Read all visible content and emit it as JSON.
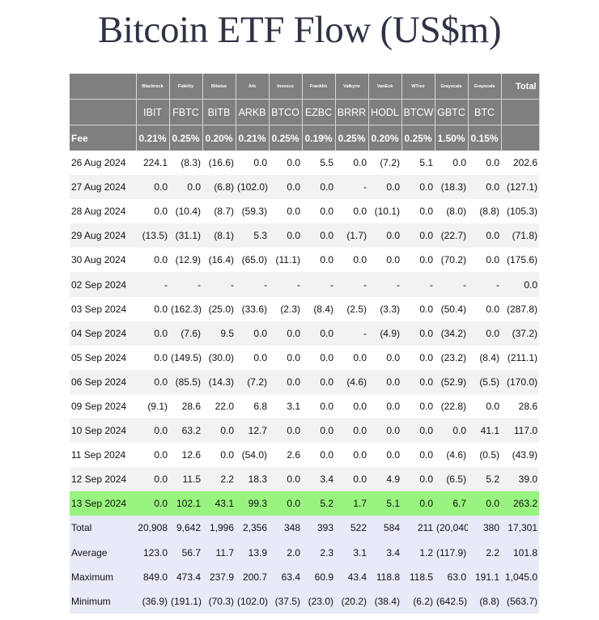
{
  "title": "Bitcoin ETF Flow (US$m)",
  "table": {
    "issuers": [
      "Blackrock",
      "Fidelity",
      "Bitwise",
      "Ark",
      "Invesco",
      "Franklin",
      "Valkyrie",
      "VanEck",
      "WTree",
      "Grayscale",
      "Grayscale"
    ],
    "total_label": "Total",
    "tickers": [
      "IBIT",
      "FBTC",
      "BITB",
      "ARKB",
      "BTCO",
      "EZBC",
      "BRRR",
      "HODL",
      "BTCW",
      "GBTC",
      "BTC"
    ],
    "fee_label": "Fee",
    "fees": [
      "0.21%",
      "0.25%",
      "0.20%",
      "0.21%",
      "0.25%",
      "0.19%",
      "0.25%",
      "0.20%",
      "0.25%",
      "1.50%",
      "0.15%"
    ],
    "rows": [
      {
        "date": "26 Aug 2024",
        "cells": [
          "224.1",
          "(8.3)",
          "(16.6)",
          "0.0",
          "0.0",
          "5.5",
          "0.0",
          "(7.2)",
          "5.1",
          "0.0",
          "0.0",
          "202.6"
        ]
      },
      {
        "date": "27 Aug 2024",
        "cells": [
          "0.0",
          "0.0",
          "(6.8)",
          "(102.0)",
          "0.0",
          "0.0",
          "-",
          "0.0",
          "0.0",
          "(18.3)",
          "0.0",
          "(127.1)"
        ]
      },
      {
        "date": "28 Aug 2024",
        "cells": [
          "0.0",
          "(10.4)",
          "(8.7)",
          "(59.3)",
          "0.0",
          "0.0",
          "0.0",
          "(10.1)",
          "0.0",
          "(8.0)",
          "(8.8)",
          "(105.3)"
        ]
      },
      {
        "date": "29 Aug 2024",
        "cells": [
          "(13.5)",
          "(31.1)",
          "(8.1)",
          "5.3",
          "0.0",
          "0.0",
          "(1.7)",
          "0.0",
          "0.0",
          "(22.7)",
          "0.0",
          "(71.8)"
        ]
      },
      {
        "date": "30 Aug 2024",
        "cells": [
          "0.0",
          "(12.9)",
          "(16.4)",
          "(65.0)",
          "(11.1)",
          "0.0",
          "0.0",
          "0.0",
          "0.0",
          "(70.2)",
          "0.0",
          "(175.6)"
        ]
      },
      {
        "date": "02 Sep 2024",
        "cells": [
          "-",
          "-",
          "-",
          "-",
          "-",
          "-",
          "-",
          "-",
          "-",
          "-",
          "-",
          "0.0"
        ]
      },
      {
        "date": "03 Sep 2024",
        "cells": [
          "0.0",
          "(162.3)",
          "(25.0)",
          "(33.6)",
          "(2.3)",
          "(8.4)",
          "(2.5)",
          "(3.3)",
          "0.0",
          "(50.4)",
          "0.0",
          "(287.8)"
        ]
      },
      {
        "date": "04 Sep 2024",
        "cells": [
          "0.0",
          "(7.6)",
          "9.5",
          "0.0",
          "0.0",
          "0.0",
          "-",
          "(4.9)",
          "0.0",
          "(34.2)",
          "0.0",
          "(37.2)"
        ]
      },
      {
        "date": "05 Sep 2024",
        "cells": [
          "0.0",
          "(149.5)",
          "(30.0)",
          "0.0",
          "0.0",
          "0.0",
          "0.0",
          "0.0",
          "0.0",
          "(23.2)",
          "(8.4)",
          "(211.1)"
        ]
      },
      {
        "date": "06 Sep 2024",
        "cells": [
          "0.0",
          "(85.5)",
          "(14.3)",
          "(7.2)",
          "0.0",
          "0.0",
          "(4.6)",
          "0.0",
          "0.0",
          "(52.9)",
          "(5.5)",
          "(170.0)"
        ]
      },
      {
        "date": "09 Sep 2024",
        "cells": [
          "(9.1)",
          "28.6",
          "22.0",
          "6.8",
          "3.1",
          "0.0",
          "0.0",
          "0.0",
          "0.0",
          "(22.8)",
          "0.0",
          "28.6"
        ]
      },
      {
        "date": "10 Sep 2024",
        "cells": [
          "0.0",
          "63.2",
          "0.0",
          "12.7",
          "0.0",
          "0.0",
          "0.0",
          "0.0",
          "0.0",
          "0.0",
          "41.1",
          "117.0"
        ]
      },
      {
        "date": "11 Sep 2024",
        "cells": [
          "0.0",
          "12.6",
          "0.0",
          "(54.0)",
          "2.6",
          "0.0",
          "0.0",
          "0.0",
          "0.0",
          "(4.6)",
          "(0.5)",
          "(43.9)"
        ]
      },
      {
        "date": "12 Sep 2024",
        "cells": [
          "0.0",
          "11.5",
          "2.2",
          "18.3",
          "0.0",
          "3.4",
          "0.0",
          "4.9",
          "0.0",
          "(6.5)",
          "5.2",
          "39.0"
        ]
      },
      {
        "date": "13 Sep 2024",
        "cells": [
          "0.0",
          "102.1",
          "43.1",
          "99.3",
          "0.0",
          "5.2",
          "1.7",
          "5.1",
          "0.0",
          "6.7",
          "0.0",
          "263.2"
        ]
      }
    ],
    "summary": [
      {
        "label": "Total",
        "cells": [
          "20,908",
          "9,642",
          "1,996",
          "2,356",
          "348",
          "393",
          "522",
          "584",
          "211",
          "(20,040)",
          "380",
          "17,301"
        ]
      },
      {
        "label": "Average",
        "cells": [
          "123.0",
          "56.7",
          "11.7",
          "13.9",
          "2.0",
          "2.3",
          "3.1",
          "3.4",
          "1.2",
          "(117.9)",
          "2.2",
          "101.8"
        ]
      },
      {
        "label": "Maximum",
        "cells": [
          "849.0",
          "473.4",
          "237.9",
          "200.7",
          "63.4",
          "60.9",
          "43.4",
          "118.8",
          "118.5",
          "63.0",
          "191.1",
          "1,045.0"
        ]
      },
      {
        "label": "Minimum",
        "cells": [
          "(36.9)",
          "(191.1)",
          "(70.3)",
          "(102.0)",
          "(37.5)",
          "(23.0)",
          "(20.2)",
          "(38.4)",
          "(6.2)",
          "(642.5)",
          "(8.8)",
          "(563.7)"
        ]
      }
    ],
    "colors": {
      "header_bg": "#7f7f7f",
      "negative_text": "#c0262b",
      "highlight_row": "#99f37f",
      "summary_bg": "#e8ebf7",
      "stripe_bg": "#f2f2f2"
    }
  }
}
